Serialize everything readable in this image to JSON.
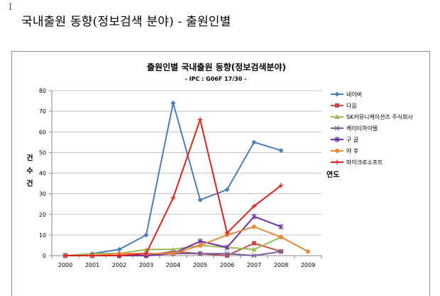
{
  "cursor_glyph": "I",
  "page_title": "국내출원 동향(정보검색 분야) - 출원인별",
  "chart_data": {
    "type": "line",
    "title": "출원인별 국내출원 동향(정보검색분야)",
    "subtitle": "- IPC : G06F 17/30 -",
    "ylabel": "건 수 건",
    "ylabel_chars": [
      "건",
      "수",
      "건"
    ],
    "xlabel": "연도",
    "ylim": [
      0,
      80
    ],
    "yticks": [
      0,
      10,
      20,
      30,
      40,
      50,
      60,
      70,
      80
    ],
    "categories": [
      "2000",
      "2001",
      "2002",
      "2003",
      "2004",
      "2005",
      "2006",
      "2007",
      "2008",
      "2009"
    ],
    "series": [
      {
        "name": "네이버",
        "color": "#4a7ebb",
        "marker": "diamond",
        "values": [
          0,
          1,
          3,
          10,
          74,
          27,
          32,
          55,
          51,
          null
        ]
      },
      {
        "name": "다음",
        "color": "#be4b48",
        "marker": "square",
        "values": [
          0,
          0,
          0,
          0,
          2,
          1,
          0,
          6,
          2,
          null
        ]
      },
      {
        "name": "SK커뮤니케이션즈 주식회사",
        "color": "#98b954",
        "marker": "triangle",
        "values": [
          0,
          1,
          1,
          3,
          3,
          5,
          4,
          3,
          9,
          null
        ]
      },
      {
        "name": "케이티하이텔",
        "color": "#7d60a0",
        "marker": "x",
        "values": [
          0,
          0,
          0,
          0,
          1,
          1,
          1,
          0,
          2,
          null
        ]
      },
      {
        "name": "구 글",
        "color": "#7030a0",
        "marker": "star",
        "values": [
          0,
          0,
          0,
          0,
          1,
          7,
          4,
          19,
          14,
          null
        ]
      },
      {
        "name": "야 후",
        "color": "#e8883a",
        "marker": "circle",
        "values": [
          0,
          0,
          1,
          1,
          1,
          5,
          10,
          14,
          9,
          2
        ]
      },
      {
        "name": "마이크로소프트",
        "color": "#e0201b",
        "marker": "plus",
        "values": [
          0,
          0,
          0,
          1,
          28,
          66,
          11,
          24,
          34,
          null
        ]
      }
    ],
    "grid": "horizontal",
    "legend_position": "right"
  }
}
